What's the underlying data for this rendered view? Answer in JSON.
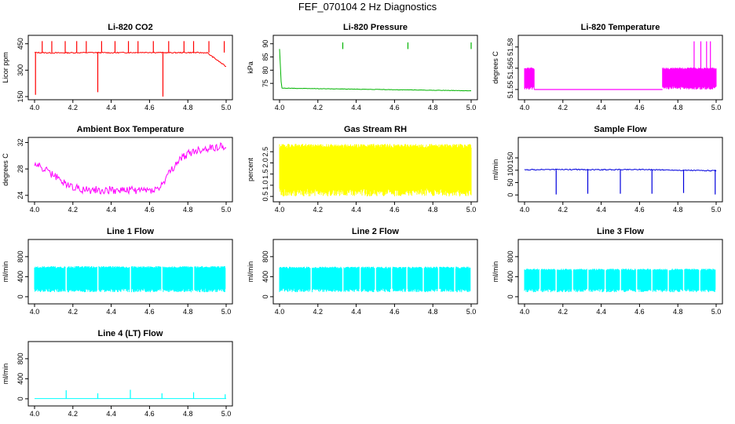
{
  "page": {
    "title": "FEF_070104  2 Hz Diagnostics"
  },
  "chart_data": [
    {
      "type": "line",
      "title": "Li-820 CO2",
      "ylabel": "Licor ppm",
      "color": "#ff0000",
      "xlim": [
        4.0,
        5.0
      ],
      "ylim": [
        150,
        480
      ],
      "xticks": [
        "4.0",
        "4.2",
        "4.4",
        "4.6",
        "4.8",
        "5.0"
      ],
      "yticks": [
        {
          "v": 150,
          "label": "150"
        },
        {
          "v": 300,
          "label": "300"
        },
        {
          "v": 450,
          "label": "450"
        }
      ],
      "series": [
        {
          "x": [
            4.0,
            4.1,
            4.2,
            4.3,
            4.4,
            4.5,
            4.6,
            4.7,
            4.8,
            4.9,
            5.0
          ],
          "y": [
            400,
            398,
            399,
            400,
            399,
            400,
            401,
            399,
            400,
            399,
            320
          ]
        }
      ],
      "spikes_up": [
        4.04,
        4.09,
        4.16,
        4.22,
        4.27,
        4.35,
        4.42,
        4.49,
        4.54,
        4.62,
        4.7,
        4.78,
        4.83,
        4.91,
        4.99
      ],
      "spikes_up_value": 465,
      "spikes_down": [
        {
          "x": 4.005,
          "v": 160
        },
        {
          "x": 4.33,
          "v": 175
        },
        {
          "x": 4.67,
          "v": 150
        }
      ],
      "noise": 6
    },
    {
      "type": "line",
      "title": "Li-820 Pressure",
      "ylabel": "kPa",
      "color": "#00b400",
      "xlim": [
        4.0,
        5.0
      ],
      "ylim": [
        70,
        92
      ],
      "xticks": [
        "4.0",
        "4.2",
        "4.4",
        "4.6",
        "4.8",
        "5.0"
      ],
      "yticks": [
        {
          "v": 75,
          "label": "75"
        },
        {
          "v": 80,
          "label": "80"
        },
        {
          "v": 85,
          "label": "85"
        },
        {
          "v": 90,
          "label": "90"
        }
      ],
      "series": [
        {
          "x": [
            4.0,
            4.01,
            4.1,
            4.2,
            4.3,
            4.4,
            4.5,
            4.6,
            4.7,
            4.8,
            4.9,
            5.0
          ],
          "y": [
            88,
            73.2,
            73.1,
            73.0,
            72.9,
            72.8,
            72.7,
            72.6,
            72.5,
            72.4,
            72.3,
            72.2
          ]
        }
      ],
      "spikes_up": [
        4.33,
        4.67,
        5.0
      ],
      "spikes_up_value": 90.5,
      "noise": 0.15
    },
    {
      "type": "line",
      "title": "Li-820 Temperature",
      "ylabel": "degrees C",
      "color": "#ff00ff",
      "xlim": [
        4.0,
        5.0
      ],
      "ylim": [
        51.545,
        51.586
      ],
      "xticks": [
        "4.0",
        "4.2",
        "4.4",
        "4.6",
        "4.8",
        "5.0"
      ],
      "yticks": [
        {
          "v": 51.55,
          "label": "51.55"
        },
        {
          "v": 51.565,
          "label": "51.565"
        },
        {
          "v": 51.58,
          "label": "51.58"
        }
      ],
      "bands": [
        {
          "x0": 4.0,
          "x1": 4.05,
          "lo": 51.55,
          "hi": 51.5655
        },
        {
          "x0": 4.72,
          "x1": 5.0,
          "lo": 51.55,
          "hi": 51.5655
        }
      ],
      "base_segments": [
        {
          "x0": 4.05,
          "x1": 4.72,
          "v": 51.55
        }
      ],
      "spikes_up": [
        4.885,
        4.92,
        4.95,
        4.97
      ],
      "spikes_up_value": 51.584
    },
    {
      "type": "line",
      "title": "Ambient Box Temperature",
      "ylabel": "degrees C",
      "color": "#ff00ff",
      "xlim": [
        4.0,
        5.0
      ],
      "ylim": [
        23.5,
        32.3
      ],
      "xticks": [
        "4.0",
        "4.2",
        "4.4",
        "4.6",
        "4.8",
        "5.0"
      ],
      "yticks": [
        {
          "v": 24,
          "label": "24"
        },
        {
          "v": 28,
          "label": "28"
        },
        {
          "v": 32,
          "label": "32"
        }
      ],
      "series": [
        {
          "x": [
            4.0,
            4.05,
            4.1,
            4.15,
            4.2,
            4.25,
            4.3,
            4.4,
            4.5,
            4.6,
            4.65,
            4.7,
            4.75,
            4.8,
            4.85,
            4.9,
            4.95,
            5.0
          ],
          "y": [
            28.8,
            28.0,
            27.0,
            26.0,
            25.3,
            24.9,
            24.8,
            24.8,
            24.8,
            24.8,
            25.0,
            27.2,
            29.2,
            30.3,
            30.8,
            31.1,
            31.3,
            31.5
          ]
        }
      ],
      "noise": 1.2
    },
    {
      "type": "line",
      "title": "Gas Stream RH",
      "ylabel": "percent",
      "color": "#ffff00",
      "xlim": [
        4.0,
        5.0
      ],
      "ylim": [
        0.4,
        3.0
      ],
      "xticks": [
        "4.0",
        "4.2",
        "4.4",
        "4.6",
        "4.8",
        "5.0"
      ],
      "yticks": [
        {
          "v": 0.5,
          "label": "0.5"
        },
        {
          "v": 1.0,
          "label": "1.0"
        },
        {
          "v": 1.5,
          "label": "1.5"
        },
        {
          "v": 2.0,
          "label": "2.0"
        },
        {
          "v": 2.5,
          "label": "2.5"
        }
      ],
      "bands": [
        {
          "x0": 4.0,
          "x1": 5.0,
          "lo": 0.5,
          "hi": 2.85
        }
      ]
    },
    {
      "type": "line",
      "title": "Sample Flow",
      "ylabel": "ml/min",
      "color": "#0000dd",
      "xlim": [
        4.0,
        5.0
      ],
      "ylim": [
        -15,
        220
      ],
      "xticks": [
        "4.0",
        "4.2",
        "4.4",
        "4.6",
        "4.8",
        "5.0"
      ],
      "yticks": [
        {
          "v": 0,
          "label": "0"
        },
        {
          "v": 50,
          "label": "50"
        },
        {
          "v": 100,
          "label": "100"
        },
        {
          "v": 150,
          "label": "150"
        }
      ],
      "series": [
        {
          "x": [
            4.0,
            4.2,
            4.4,
            4.6,
            4.8,
            5.0
          ],
          "y": [
            102,
            103,
            102,
            103,
            100,
            98
          ]
        }
      ],
      "spikes_down": [
        {
          "x": 4.165,
          "v": 2
        },
        {
          "x": 4.33,
          "v": 5
        },
        {
          "x": 4.5,
          "v": 5
        },
        {
          "x": 4.665,
          "v": 5
        },
        {
          "x": 4.83,
          "v": 8
        },
        {
          "x": 4.995,
          "v": 2
        }
      ],
      "noise": 4
    },
    {
      "type": "line",
      "title": "Line 1 Flow",
      "ylabel": "ml/min",
      "color": "#00ffff",
      "xlim": [
        4.0,
        5.0
      ],
      "ylim": [
        -80,
        1080
      ],
      "xticks": [
        "4.0",
        "4.2",
        "4.4",
        "4.6",
        "4.8",
        "5.0"
      ],
      "yticks": [
        {
          "v": 0,
          "label": "0"
        },
        {
          "v": 400,
          "label": "400"
        },
        {
          "v": 800,
          "label": "800"
        }
      ],
      "bands": [
        {
          "x0": 4.0,
          "x1": 4.995,
          "lo": 90,
          "hi": 610
        }
      ],
      "gaps": [
        4.165,
        4.33,
        4.5,
        4.665,
        4.83
      ]
    },
    {
      "type": "line",
      "title": "Line 2 Flow",
      "ylabel": "ml/min",
      "color": "#00ffff",
      "xlim": [
        4.0,
        5.0
      ],
      "ylim": [
        -80,
        1080
      ],
      "xticks": [
        "4.0",
        "4.2",
        "4.4",
        "4.6",
        "4.8",
        "5.0"
      ],
      "yticks": [
        {
          "v": 0,
          "label": "0"
        },
        {
          "v": 400,
          "label": "400"
        },
        {
          "v": 800,
          "label": "800"
        }
      ],
      "bands": [
        {
          "x0": 4.0,
          "x1": 4.995,
          "lo": 90,
          "hi": 600
        }
      ],
      "gaps": [
        4.165,
        4.33,
        4.42,
        4.5,
        4.585,
        4.665,
        4.75,
        4.83,
        4.915
      ]
    },
    {
      "type": "line",
      "title": "Line 3 Flow",
      "ylabel": "ml/min",
      "color": "#00ffff",
      "xlim": [
        4.0,
        5.0
      ],
      "ylim": [
        -80,
        1080
      ],
      "xticks": [
        "4.0",
        "4.2",
        "4.4",
        "4.6",
        "4.8",
        "5.0"
      ],
      "yticks": [
        {
          "v": 0,
          "label": "0"
        },
        {
          "v": 400,
          "label": "400"
        },
        {
          "v": 800,
          "label": "800"
        }
      ],
      "bands": [
        {
          "x0": 4.0,
          "x1": 4.995,
          "lo": 90,
          "hi": 560
        }
      ],
      "gaps": [
        4.08,
        4.165,
        4.25,
        4.33,
        4.42,
        4.5,
        4.585,
        4.665,
        4.75,
        4.83,
        4.915
      ]
    },
    {
      "type": "line",
      "title": "Line 4 (LT) Flow",
      "ylabel": "ml/min",
      "color": "#00ffff",
      "xlim": [
        4.0,
        5.0
      ],
      "ylim": [
        -80,
        1080
      ],
      "xticks": [
        "4.0",
        "4.2",
        "4.4",
        "4.6",
        "4.8",
        "5.0"
      ],
      "yticks": [
        {
          "v": 0,
          "label": "0"
        },
        {
          "v": 400,
          "label": "400"
        },
        {
          "v": 800,
          "label": "800"
        }
      ],
      "series": [
        {
          "x": [
            4.0,
            5.0
          ],
          "y": [
            5,
            5
          ]
        }
      ],
      "spikes_up": [
        4.165,
        4.33,
        4.5,
        4.665,
        4.83,
        4.995
      ],
      "spikes_up_values": [
        170,
        110,
        180,
        110,
        130,
        90
      ]
    }
  ]
}
